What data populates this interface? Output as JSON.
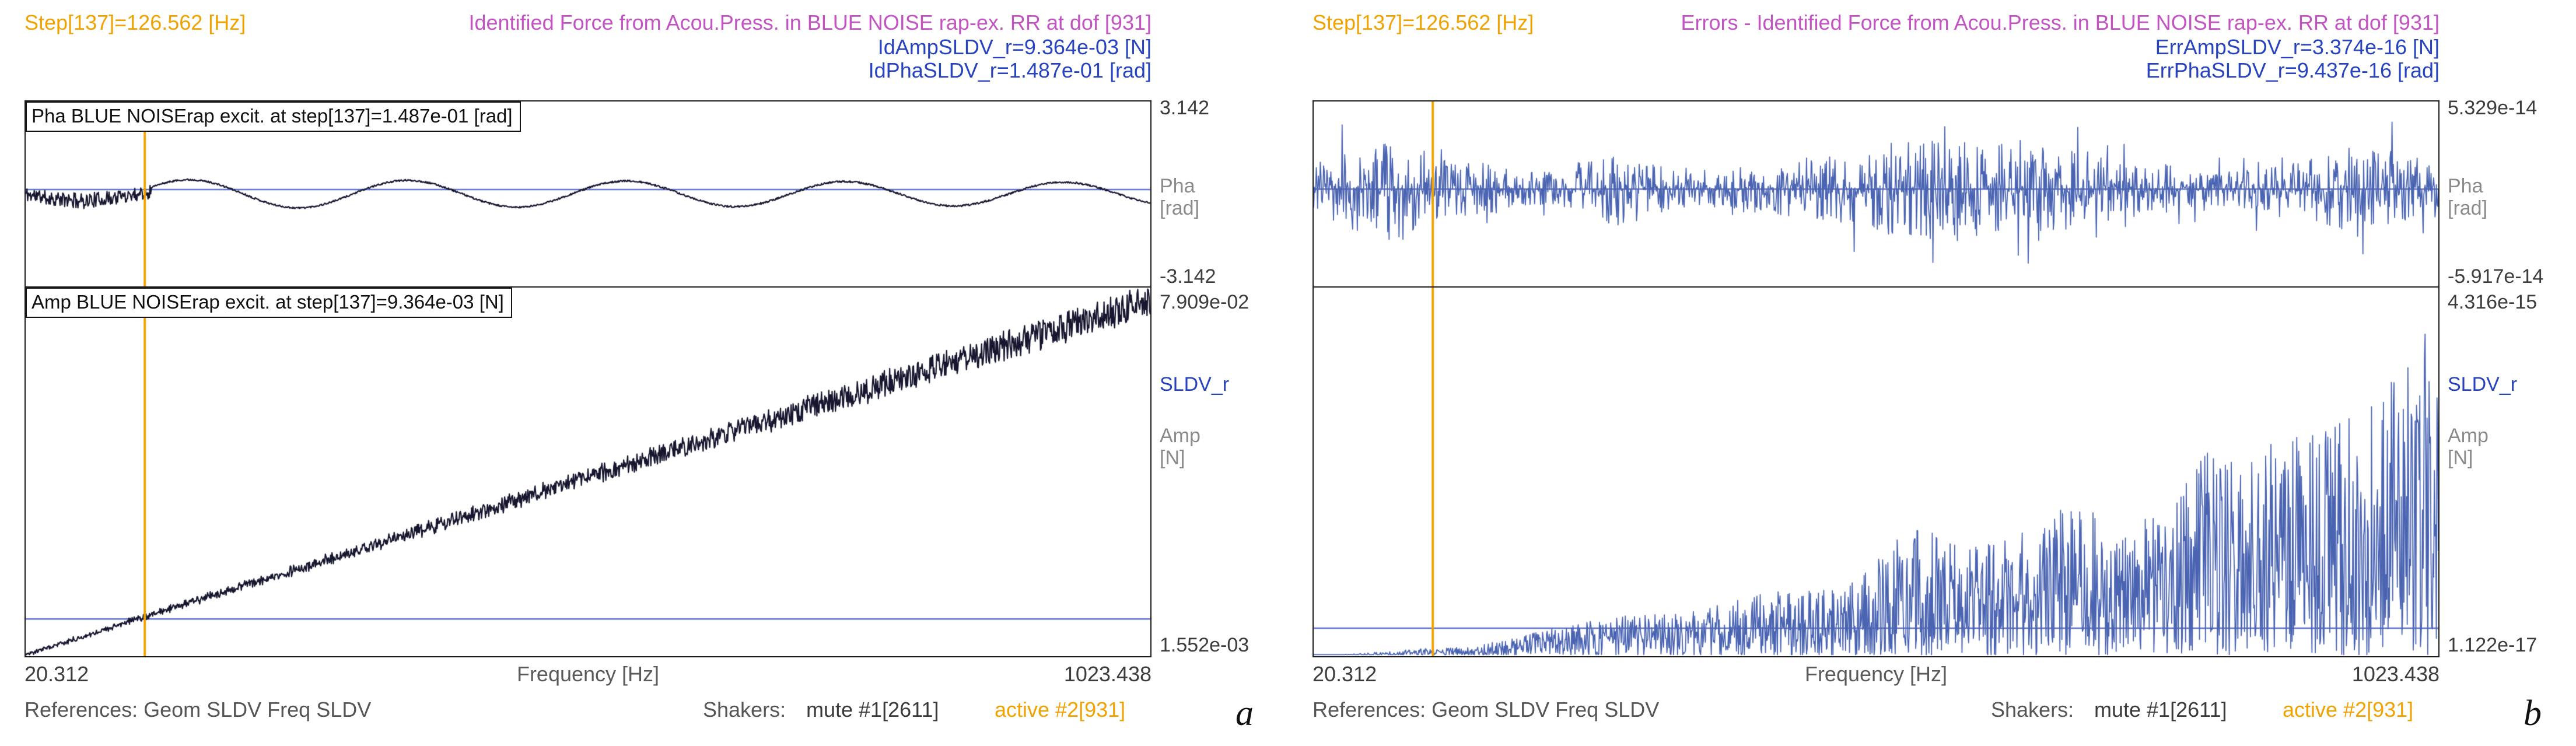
{
  "colors": {
    "accent_orange": "#f0a300",
    "title_magenta": "#c353c3",
    "readout_blue": "#2743c0",
    "marker_blue": "#6273c8",
    "trace_dark_navy": "#16162f",
    "trace_blue": "#4a64b2",
    "unit_gray": "#8a8a8a"
  },
  "panels": [
    {
      "step_label": "Step[137]=126.562 [Hz]",
      "title": "Identified Force from Acou.Press. in BLUE NOISE rap-ex. RR at dof [931]",
      "readouts": [
        "IdAmpSLDV_r=9.364e-03 [N]",
        "IdPhaSLDV_r=1.487e-01 [rad]"
      ],
      "plots": [
        {
          "inner_title": "Pha BLUE NOISErap excit. at step[137]=1.487e-01 [rad]",
          "y_top": "3.142",
          "y_bottom": "-3.142",
          "units": [
            "Pha",
            "[rad]"
          ]
        },
        {
          "inner_title": "Amp BLUE NOISErap excit. at step[137]=9.364e-03 [N]",
          "y_top": "7.909e-02",
          "y_bottom": "1.552e-03",
          "series": "SLDV_r",
          "units": [
            "Amp",
            "[N]"
          ]
        }
      ],
      "x_axis": {
        "min_label": "20.312",
        "label": "Frequency [Hz]",
        "max_label": "1023.438"
      },
      "footer": {
        "references": "References: Geom SLDV Freq SLDV",
        "shakers_label": "Shakers:",
        "mute": "mute #1[2611]",
        "active": "active #2[931]"
      },
      "corner_letter": "a"
    },
    {
      "step_label": "Step[137]=126.562 [Hz]",
      "title": "Errors - Identified Force from Acou.Press. in BLUE NOISE rap-ex. RR at dof [931]",
      "readouts": [
        "ErrAmpSLDV_r=3.374e-16 [N]",
        "ErrPhaSLDV_r=9.437e-16 [rad]"
      ],
      "plots": [
        {
          "y_top": "5.329e-14",
          "y_bottom": "-5.917e-14",
          "units": [
            "Pha",
            "[rad]"
          ]
        },
        {
          "y_top": "4.316e-15",
          "y_bottom": "1.122e-17",
          "series": "SLDV_r",
          "units": [
            "Amp",
            "[N]"
          ]
        }
      ],
      "x_axis": {
        "min_label": "20.312",
        "label": "Frequency [Hz]",
        "max_label": "1023.438"
      },
      "footer": {
        "references": "References: Geom SLDV Freq SLDV",
        "shakers_label": "Shakers:",
        "mute": "mute #1[2611]",
        "active": "active #2[931]"
      },
      "corner_letter": "b"
    }
  ],
  "chart_data": [
    {
      "id": "left-phase",
      "type": "line",
      "title": "Pha BLUE NOISErap excit. at step[137]=1.487e-01 [rad]",
      "xlabel": "Frequency [Hz]",
      "ylabel": "Pha [rad]",
      "x_range": [
        20.312,
        1023.438
      ],
      "y_range": [
        -3.142,
        3.142
      ],
      "marker_vline_x": 126.562,
      "marker_hline_y": 0.1487,
      "color": "#16162f",
      "line_width": 2.2,
      "signal": {
        "kind": "sine",
        "amp": 0.5,
        "period_hz": 195,
        "noise_until_hz": 132,
        "seed": 11
      }
    },
    {
      "id": "left-amp",
      "type": "line",
      "title": "Amp BLUE NOISErap excit. at step[137]=9.364e-03 [N]",
      "xlabel": "Frequency [Hz]",
      "ylabel": "Amp [N]",
      "x_range": [
        20.312,
        1023.438
      ],
      "y_range": [
        0.001552,
        0.07909
      ],
      "marker_vline_x": 126.562,
      "marker_hline_y": 0.009364,
      "color": "#16162f",
      "line_width": 2.2,
      "signal": {
        "kind": "linear",
        "start": 0.0019,
        "slope": 0.0745,
        "rel_noise": 0.09,
        "abs_noise": 0.0009,
        "seed": 17
      }
    },
    {
      "id": "err-phase",
      "type": "line",
      "title": "Errors - phase",
      "xlabel": "Frequency [Hz]",
      "ylabel": "Pha [rad]",
      "x_range": [
        20.312,
        1023.438
      ],
      "y_range": [
        -5.917e-14,
        5.329e-14
      ],
      "marker_vline_x": 126.562,
      "marker_hline_y": 0,
      "color": "#4a64b2",
      "line_width": 1.8,
      "signal": {
        "kind": "bursts",
        "scale": 3.4e-14,
        "env_min": 0.25,
        "seed": 23
      }
    },
    {
      "id": "err-amp",
      "type": "line",
      "title": "Errors - amplitude",
      "xlabel": "Frequency [Hz]",
      "ylabel": "Amp [N]",
      "x_range": [
        20.312,
        1023.438
      ],
      "y_range": [
        1.122e-17,
        4.316e-15
      ],
      "marker_vline_x": 126.562,
      "marker_hline_y": 3.374e-16,
      "color": "#4a64b2",
      "line_width": 1.8,
      "signal": {
        "kind": "spikes",
        "scale": 4.1e-15,
        "base": 2e-17,
        "power": 1.6,
        "env_min": 0.35,
        "seed": 37
      }
    }
  ]
}
